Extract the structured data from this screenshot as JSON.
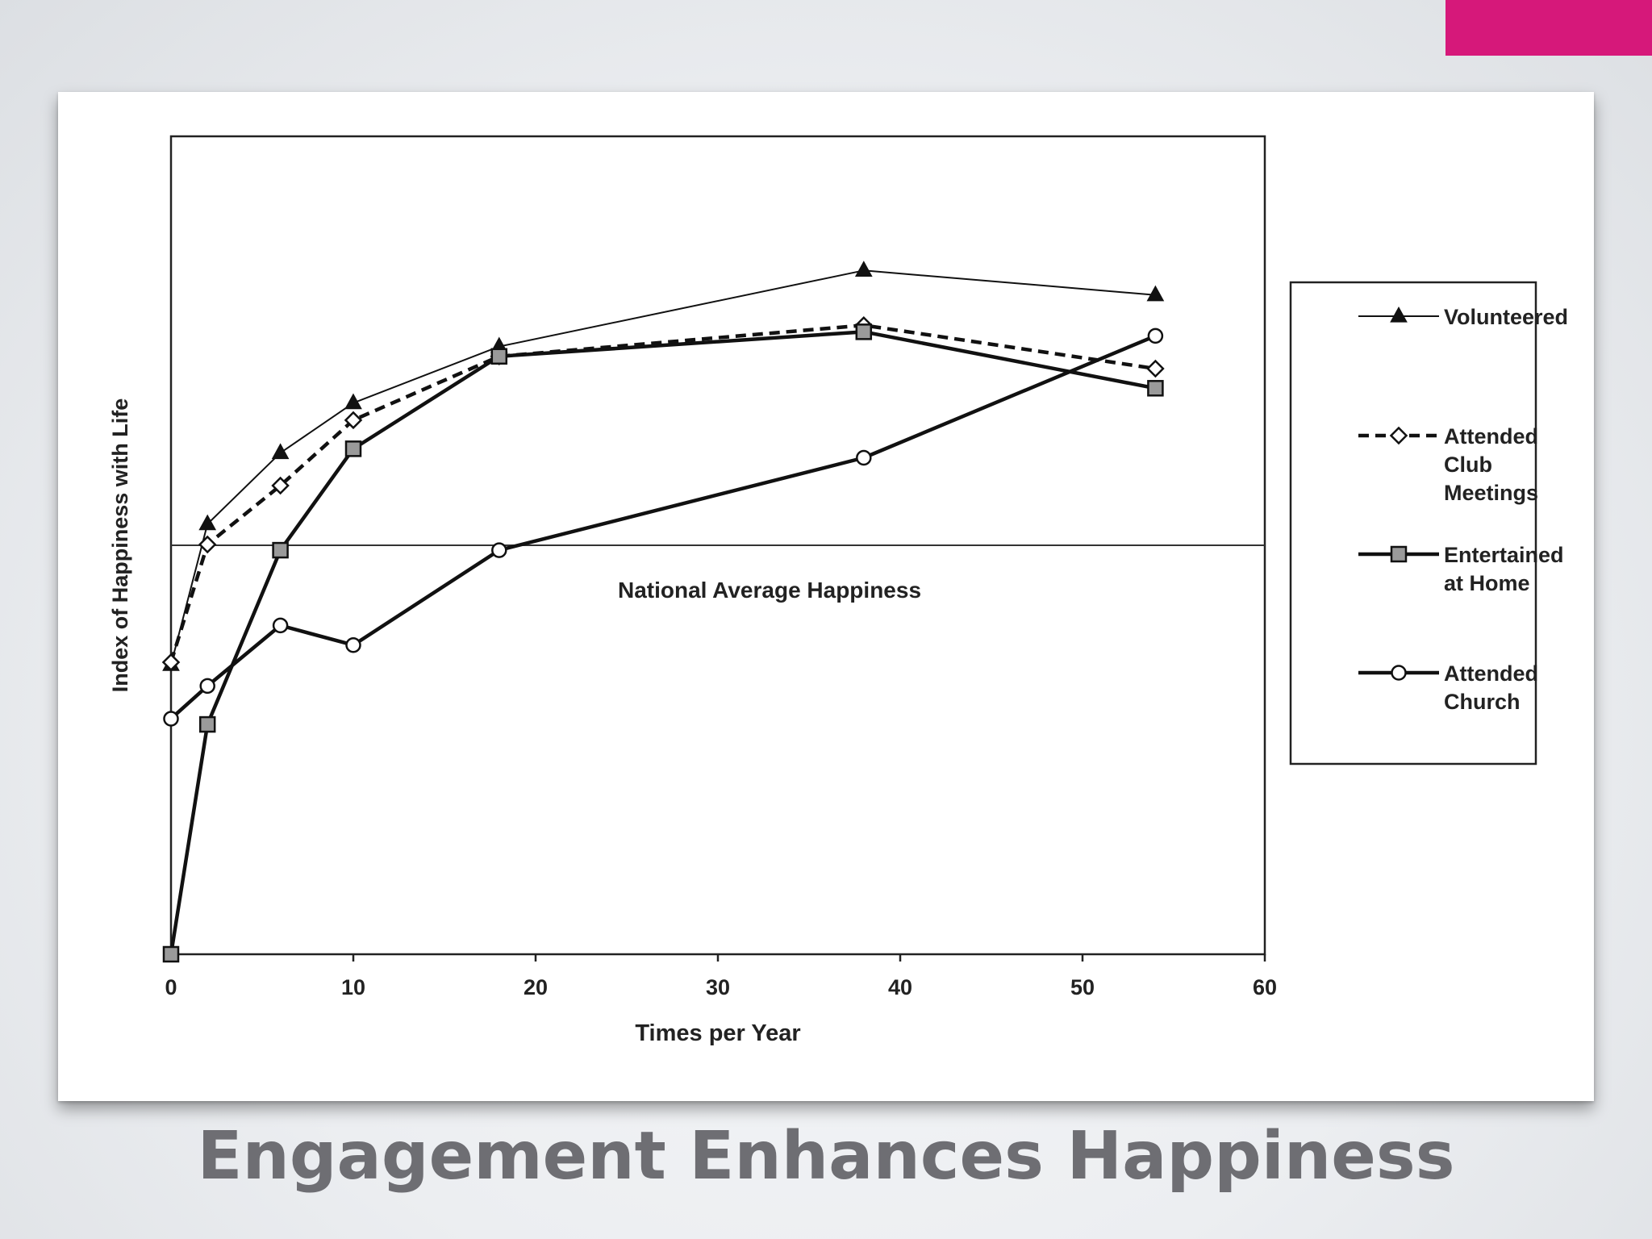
{
  "slide": {
    "title": "Engagement Enhances Happiness",
    "accent_color": "#d6187a"
  },
  "chart_data": {
    "type": "line",
    "xlabel": "Times per Year",
    "ylabel": "Index of Happiness with Life",
    "xlim": [
      0,
      60
    ],
    "x_ticks": [
      0,
      10,
      20,
      30,
      40,
      50,
      60
    ],
    "y_ticks": [],
    "grid": false,
    "legend_position": "right",
    "reference_line": {
      "label": "National Average Happiness",
      "y": 0.5
    },
    "series": [
      {
        "name": "Volunteered",
        "marker": "filled-triangle",
        "line_style": "solid-thin",
        "x": [
          0,
          2,
          6,
          10,
          18,
          38,
          54
        ],
        "y": [
          0.354,
          0.526,
          0.613,
          0.674,
          0.743,
          0.836,
          0.806
        ]
      },
      {
        "name": "Attended Club Meetings",
        "marker": "open-diamond",
        "line_style": "dashed",
        "x": [
          0,
          2,
          6,
          10,
          18,
          38,
          54
        ],
        "y": [
          0.357,
          0.501,
          0.573,
          0.653,
          0.731,
          0.769,
          0.716
        ]
      },
      {
        "name": "Entertained at Home",
        "marker": "gray-square",
        "line_style": "solid-thick",
        "x": [
          0,
          2,
          6,
          10,
          18,
          38,
          54
        ],
        "y": [
          0.0,
          0.281,
          0.494,
          0.618,
          0.731,
          0.761,
          0.692
        ]
      },
      {
        "name": "Attended Church",
        "marker": "open-circle",
        "line_style": "solid-thick",
        "x": [
          0,
          2,
          6,
          10,
          18,
          38,
          54
        ],
        "y": [
          0.288,
          0.328,
          0.402,
          0.378,
          0.494,
          0.607,
          0.756
        ]
      }
    ]
  }
}
